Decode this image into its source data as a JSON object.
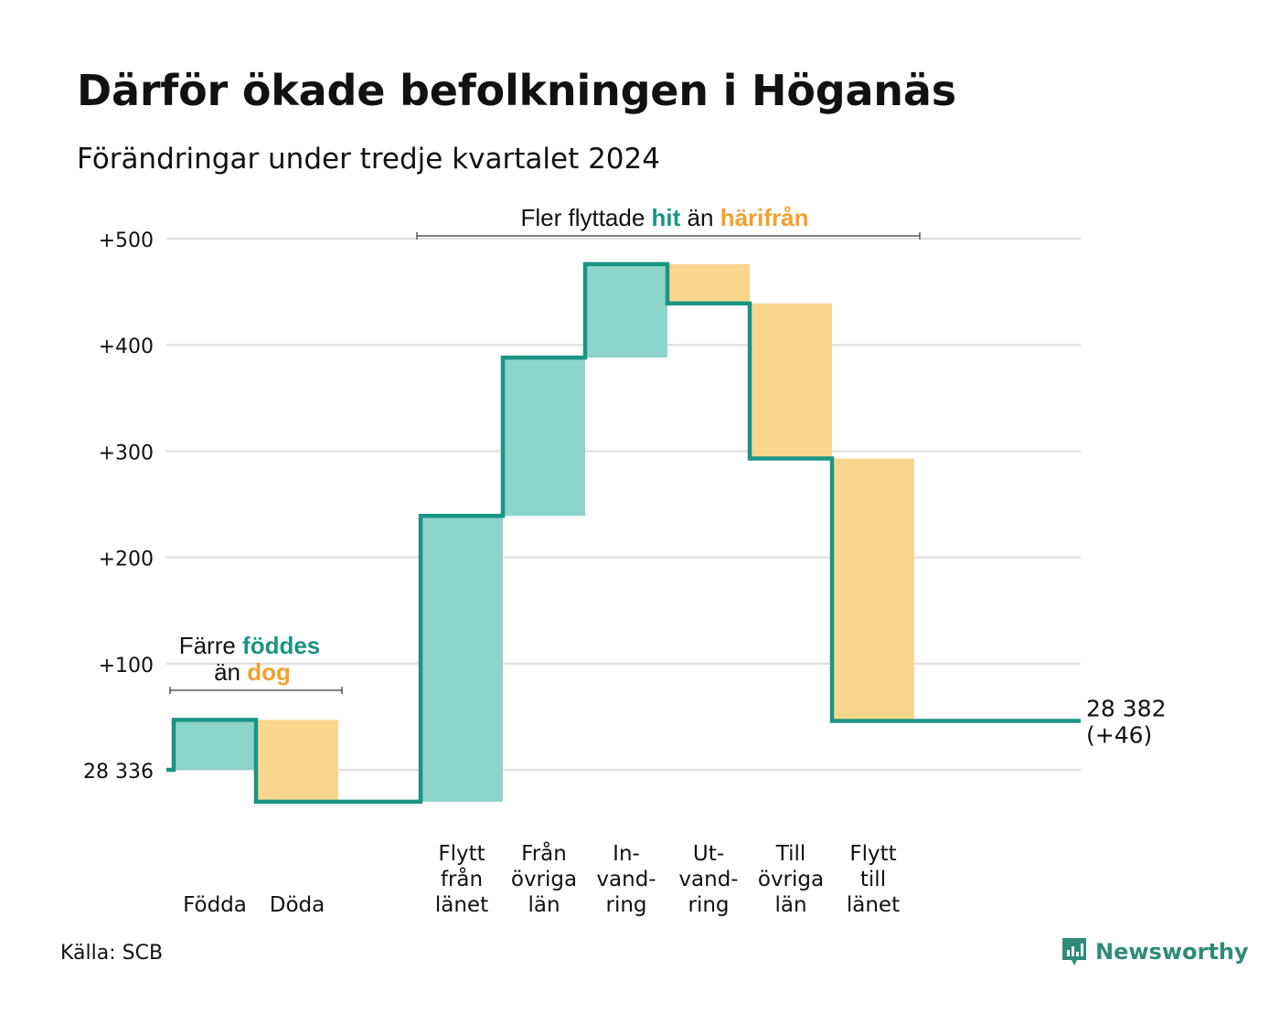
{
  "title": "Därför ökade befolkningen i Höganäs",
  "subtitle": "Förändringar under tredje kvartalet 2024",
  "source": "Källa: SCB",
  "brand": "Newsworthy",
  "colors": {
    "increase": "#8dd4cb",
    "decrease": "#f9d68d",
    "line": "#1a9582",
    "teal_text": "#1a9582",
    "orange_text": "#f2a12e",
    "grid": "#e2e2e2"
  },
  "annotations": {
    "natural": {
      "line1_prefix": "Färre ",
      "line1_highlight": "föddes",
      "line2_prefix": "än ",
      "line2_highlight": "dog"
    },
    "migration": {
      "prefix": "Fler flyttade ",
      "highlight1": "hit",
      "middle": " än ",
      "highlight2": "härifrån"
    }
  },
  "chart_data": {
    "type": "waterfall",
    "baseline_label": "28 336",
    "end_label_line1": "28 382",
    "end_label_line2": "(+46)",
    "y_ticks": [
      {
        "value": 0,
        "label": "28 336"
      },
      {
        "value": 100,
        "label": "+100"
      },
      {
        "value": 200,
        "label": "+200"
      },
      {
        "value": 300,
        "label": "+300"
      },
      {
        "value": 400,
        "label": "+400"
      },
      {
        "value": 500,
        "label": "+500"
      }
    ],
    "ylim": [
      -30,
      500
    ],
    "steps": [
      {
        "label": [
          "Födda"
        ],
        "change": 47,
        "direction": "increase"
      },
      {
        "label": [
          "Döda"
        ],
        "change": -77,
        "direction": "decrease"
      },
      {
        "label": [],
        "change": 0,
        "direction": "none"
      },
      {
        "label": [
          "Flytt",
          "från",
          "länet"
        ],
        "change": 269,
        "direction": "increase"
      },
      {
        "label": [
          "Från",
          "övriga",
          "län"
        ],
        "change": 149,
        "direction": "increase"
      },
      {
        "label": [
          "In-",
          "vand-",
          "ring"
        ],
        "change": 88,
        "direction": "increase"
      },
      {
        "label": [
          "Ut-",
          "vand-",
          "ring"
        ],
        "change": -37,
        "direction": "decrease"
      },
      {
        "label": [
          "Till",
          "övriga",
          "län"
        ],
        "change": -146,
        "direction": "decrease"
      },
      {
        "label": [
          "Flytt",
          "till",
          "länet"
        ],
        "change": -247,
        "direction": "decrease"
      }
    ],
    "final_change": 46
  }
}
